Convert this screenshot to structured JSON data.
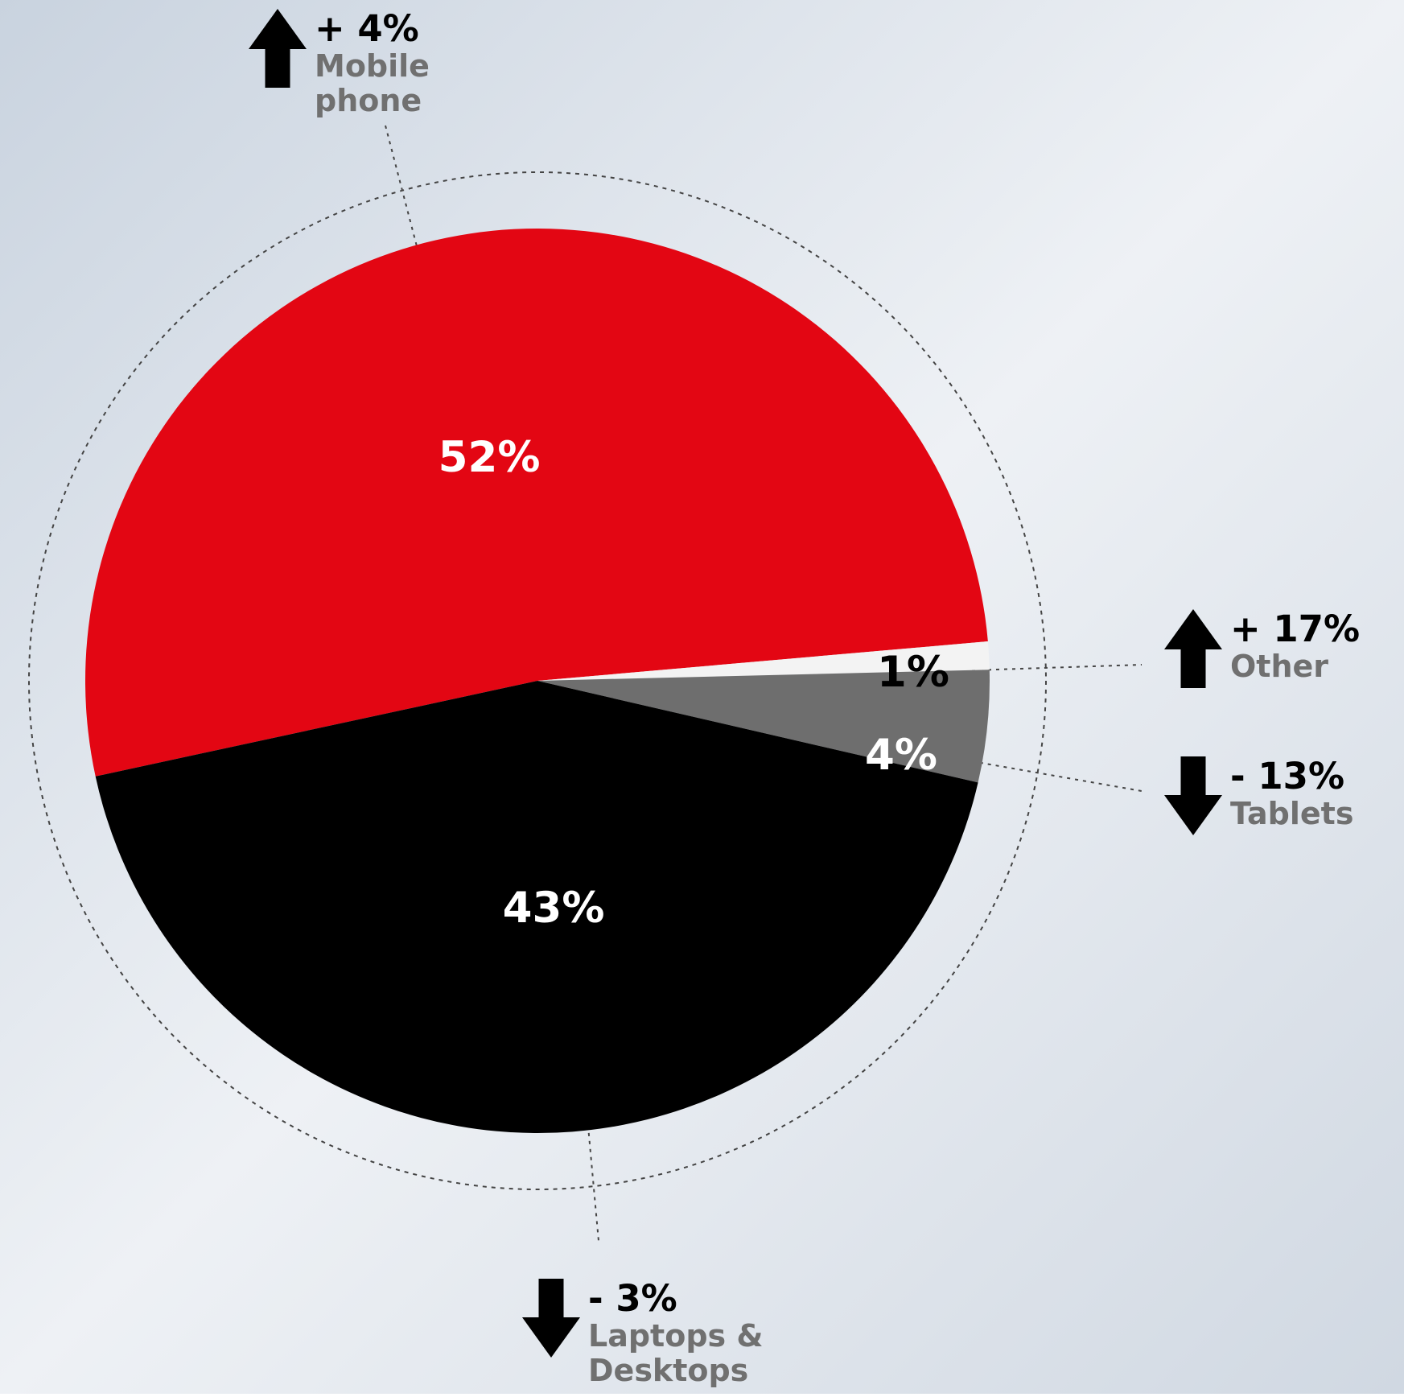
{
  "chart_data": {
    "type": "pie",
    "categories": [
      "Mobile phone",
      "Other",
      "Tablets",
      "Laptops & Desktops"
    ],
    "values": [
      52,
      1,
      4,
      43
    ],
    "value_labels": [
      "52%",
      "1%",
      "4%",
      "43%"
    ],
    "colors": [
      "#e30613",
      "#f3f3f3",
      "#6e6e6e",
      "#000000"
    ],
    "changes": [
      4,
      17,
      -13,
      -3
    ],
    "change_labels": [
      "+ 4%",
      "+ 17%",
      "- 13%",
      "- 3%"
    ]
  }
}
